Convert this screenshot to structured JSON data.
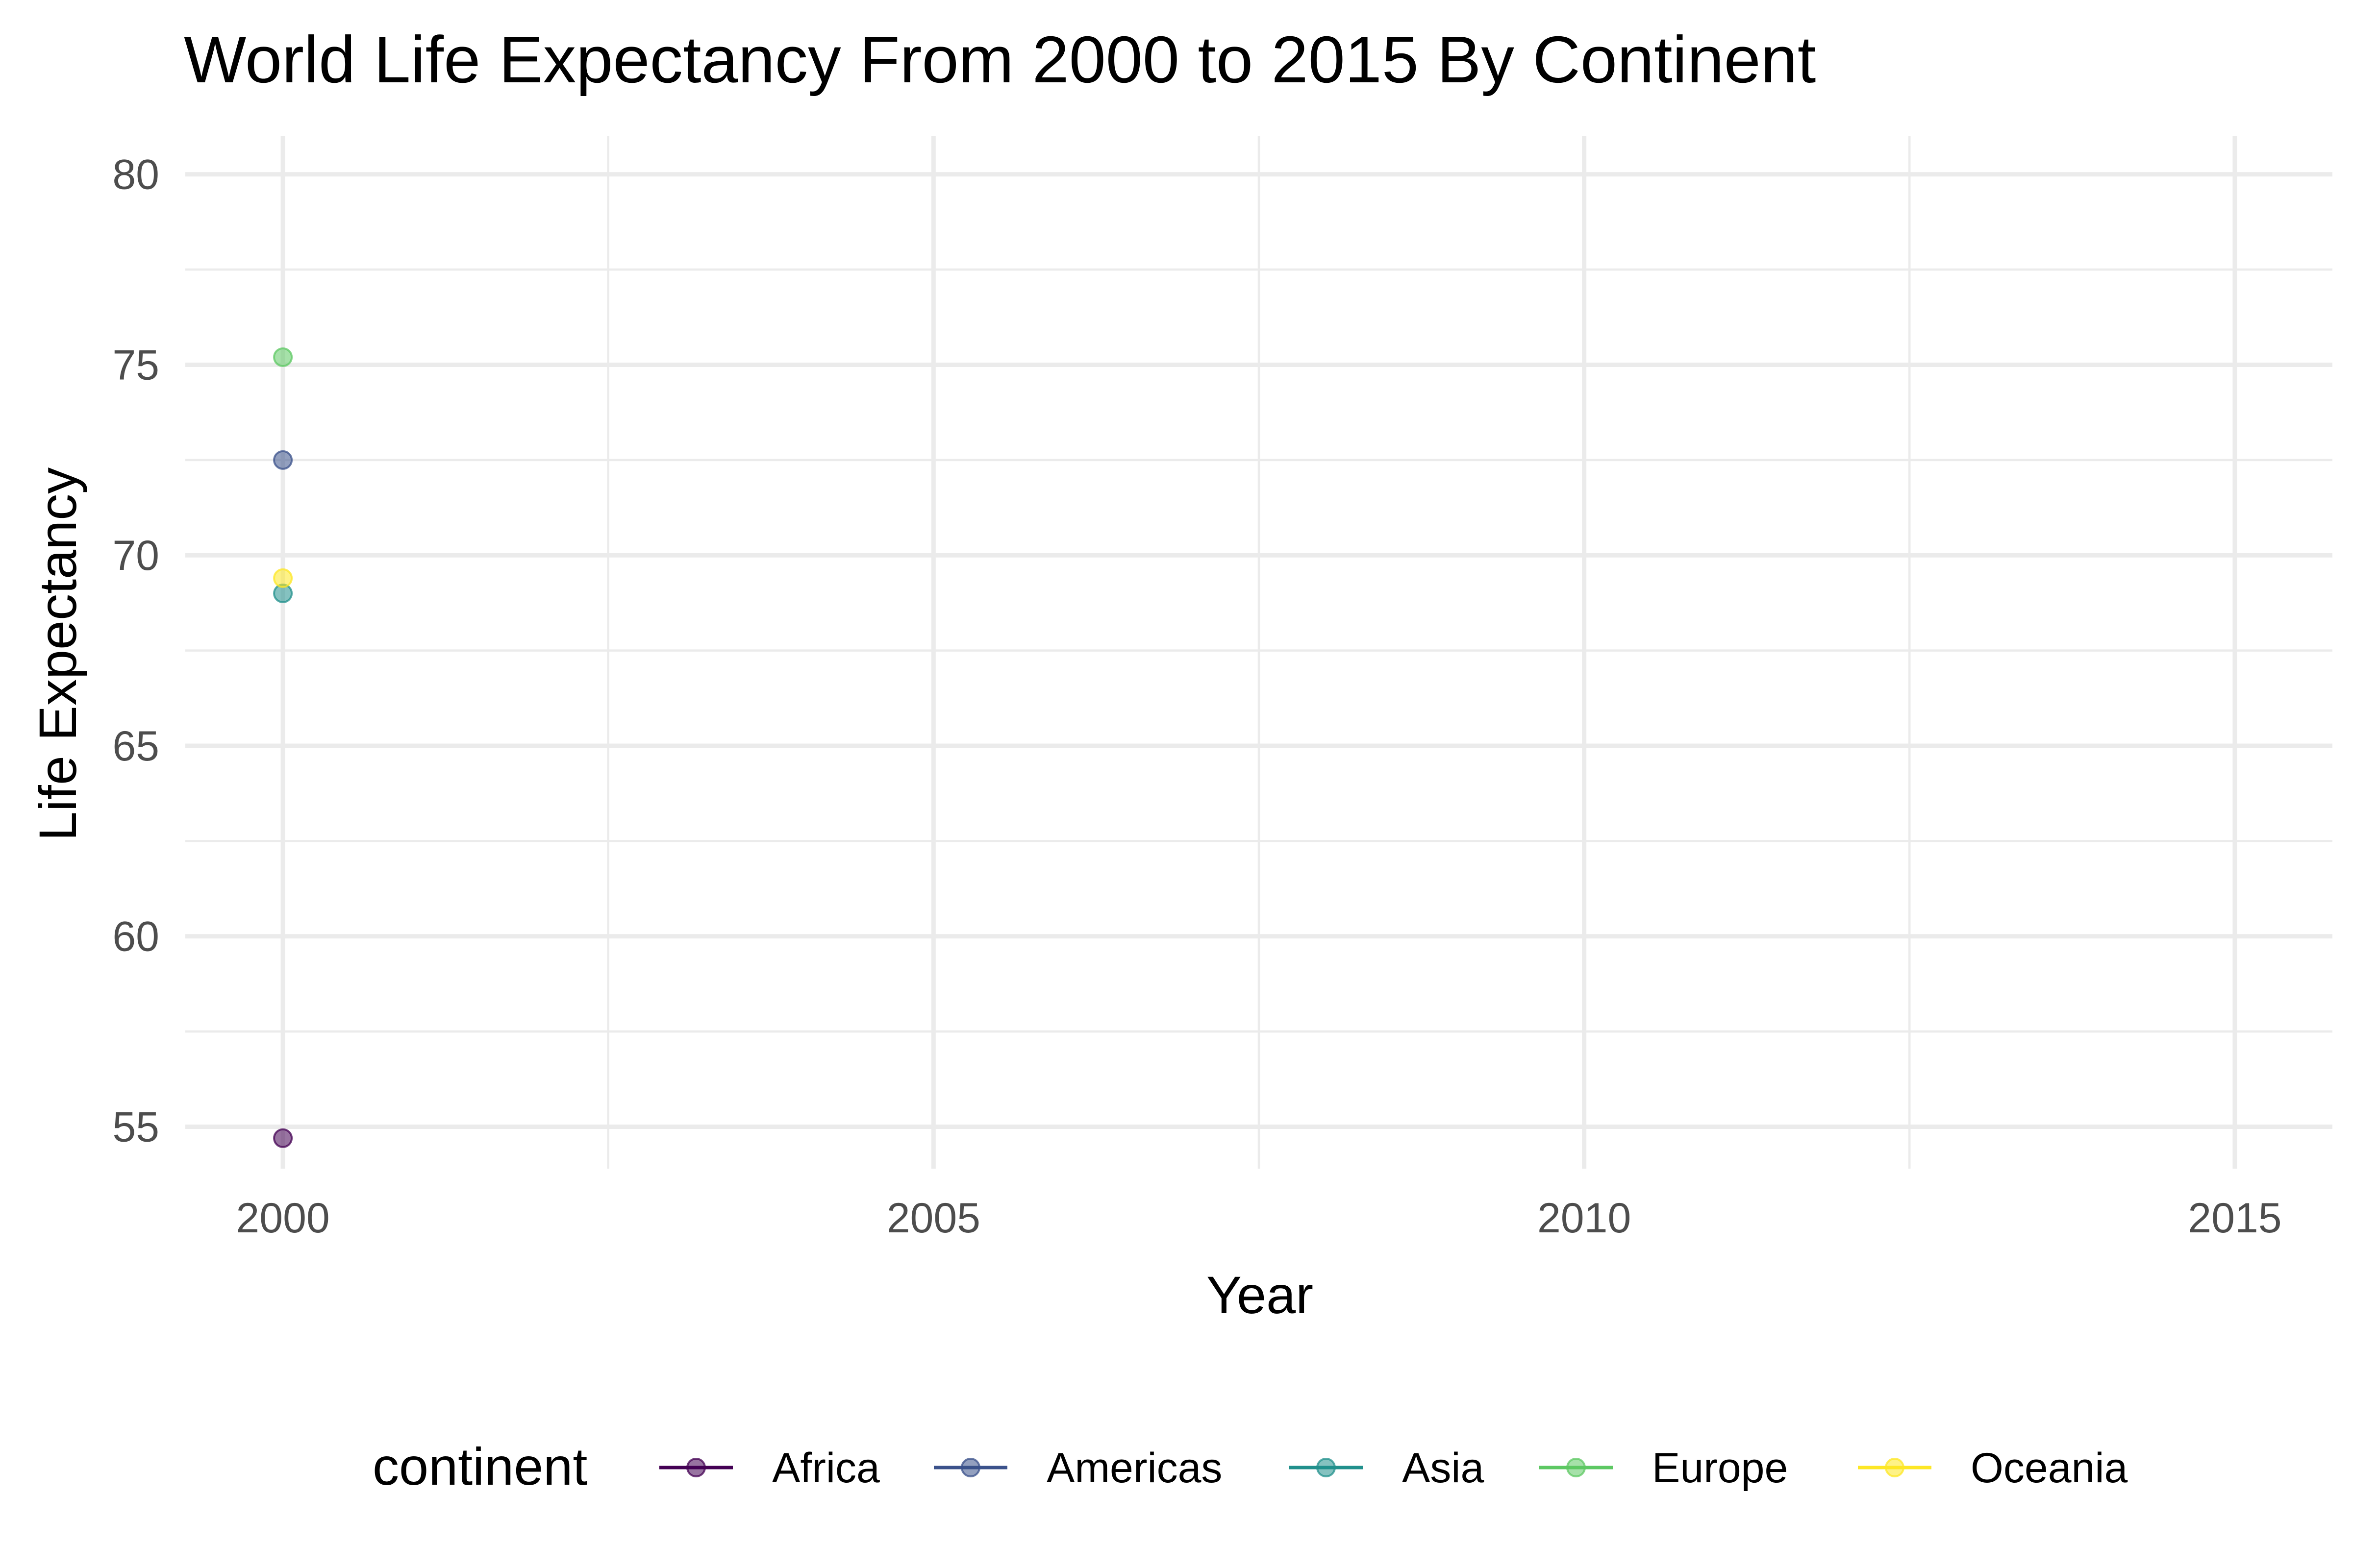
{
  "chart_data": {
    "type": "line",
    "title": "World Life Expectancy From 2000 to 2015 By Continent",
    "xlabel": "Year",
    "ylabel": "Life Expectancy",
    "xlim": [
      1999.25,
      2015.75
    ],
    "ylim": [
      53.9,
      81.0
    ],
    "x_ticks": [
      2000,
      2005,
      2010,
      2015
    ],
    "y_ticks": [
      55,
      60,
      65,
      70,
      75,
      80
    ],
    "grid": true,
    "legend": {
      "title": "continent",
      "position": "bottom"
    },
    "series": [
      {
        "name": "Africa",
        "color": "#440154",
        "x": [
          2000
        ],
        "y": [
          54.7
        ]
      },
      {
        "name": "Americas",
        "color": "#3b528b",
        "x": [
          2000
        ],
        "y": [
          72.5
        ]
      },
      {
        "name": "Asia",
        "color": "#21908c",
        "x": [
          2000
        ],
        "y": [
          69.0
        ]
      },
      {
        "name": "Europe",
        "color": "#5dc863",
        "x": [
          2000
        ],
        "y": [
          75.2
        ]
      },
      {
        "name": "Oceania",
        "color": "#fde725",
        "x": [
          2000
        ],
        "y": [
          69.4
        ]
      }
    ]
  }
}
